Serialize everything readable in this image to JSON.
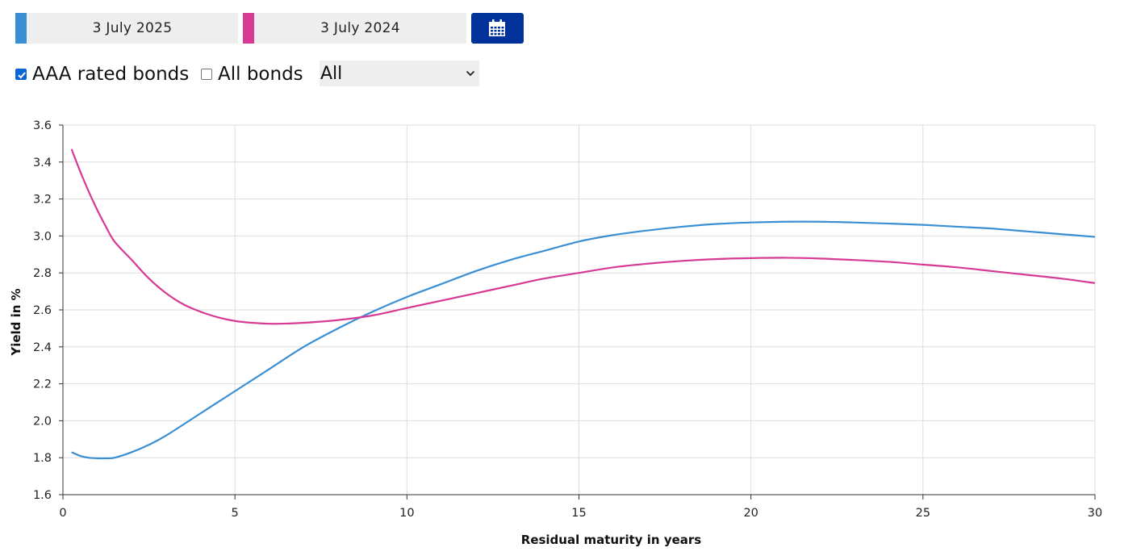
{
  "controls": {
    "date_a": {
      "label": "3 July 2025",
      "color": "#3a8fd4"
    },
    "date_b": {
      "label": "3 July 2024",
      "color": "#d63a94"
    },
    "calendar_button_color": "#003299",
    "checkboxes": [
      {
        "label": "AAA rated bonds",
        "checked": true
      },
      {
        "label": "All bonds",
        "checked": false
      }
    ],
    "select": {
      "value": "All"
    }
  },
  "chart_data": {
    "type": "line",
    "title": "",
    "xlabel": "Residual maturity in years",
    "ylabel": "Yield in %",
    "xlim": [
      0,
      30
    ],
    "ylim": [
      1.6,
      3.6
    ],
    "xticks": [
      "0",
      "5",
      "10",
      "15",
      "20",
      "25",
      "30"
    ],
    "yticks": [
      "1.6",
      "1.8",
      "2.0",
      "2.2",
      "2.4",
      "2.6",
      "2.8",
      "3.0",
      "3.2",
      "3.4",
      "3.6"
    ],
    "grid": true,
    "legend": "none",
    "series": [
      {
        "color": "#3a8fd4",
        "x": [
          0.25,
          0.5,
          0.75,
          1,
          1.25,
          1.5,
          2,
          2.5,
          3,
          4,
          5,
          6,
          7,
          8,
          9,
          10,
          11,
          12,
          13,
          14,
          15,
          16,
          17,
          18,
          19,
          20,
          21,
          22,
          23,
          24,
          25,
          26,
          27,
          28,
          29,
          30
        ],
        "y": [
          1.83,
          1.81,
          1.8,
          1.797,
          1.797,
          1.8,
          1.83,
          1.87,
          1.92,
          2.04,
          2.16,
          2.28,
          2.4,
          2.5,
          2.59,
          2.67,
          2.74,
          2.81,
          2.87,
          2.92,
          2.97,
          3.005,
          3.03,
          3.05,
          3.065,
          3.073,
          3.077,
          3.077,
          3.073,
          3.067,
          3.06,
          3.05,
          3.04,
          3.025,
          3.01,
          2.995
        ]
      },
      {
        "color": "#d63a94",
        "x": [
          0.25,
          0.5,
          0.75,
          1,
          1.25,
          1.5,
          2,
          2.5,
          3,
          3.5,
          4,
          4.5,
          5,
          5.5,
          6,
          6.5,
          7,
          8,
          9,
          10,
          11,
          12,
          13,
          14,
          15,
          16,
          17,
          18,
          19,
          20,
          21,
          22,
          23,
          24,
          25,
          26,
          27,
          28,
          29,
          30
        ],
        "y": [
          3.47,
          3.35,
          3.24,
          3.14,
          3.05,
          2.97,
          2.87,
          2.77,
          2.69,
          2.63,
          2.59,
          2.56,
          2.54,
          2.53,
          2.525,
          2.526,
          2.53,
          2.545,
          2.57,
          2.61,
          2.65,
          2.69,
          2.73,
          2.77,
          2.8,
          2.83,
          2.85,
          2.865,
          2.875,
          2.88,
          2.882,
          2.878,
          2.87,
          2.86,
          2.845,
          2.83,
          2.81,
          2.79,
          2.77,
          2.745
        ]
      }
    ]
  }
}
